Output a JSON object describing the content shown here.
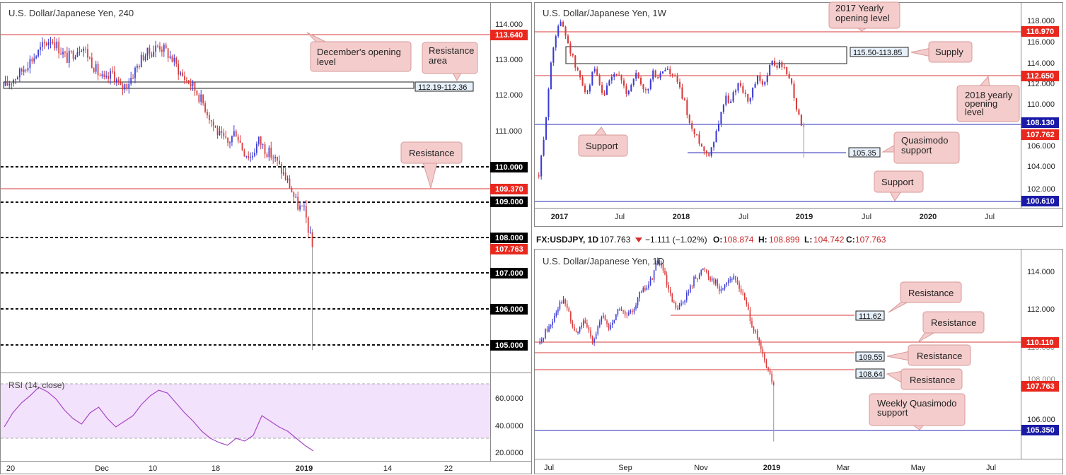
{
  "colors": {
    "bull": "#3b3bd6",
    "bear": "#d93a3a",
    "red_line": "#d93a3a",
    "blue_line": "#2a2ab8",
    "callout_fill": "#f4cccc",
    "callout_stroke": "#d99a9a",
    "rsi_fill": "#f3e2fb",
    "rsi_line": "#a646c8",
    "tag_red": "#e8281e",
    "tag_black": "#000000",
    "tag_blue": "#1a1aa8",
    "zone_label_fill": "#e6f0fa"
  },
  "charts": [
    {
      "id": "h4",
      "title": "U.S. Dollar/Japanese Yen, 240",
      "x_labels": [
        "20",
        "Dec",
        "10",
        "18",
        "2019",
        "14",
        "22"
      ],
      "y_labels": [
        "114.000",
        "113.000",
        "112.000",
        "111.000",
        "110.000",
        "109.000",
        "108.000",
        "107.000",
        "106.000",
        "105.000"
      ],
      "price_tags": [
        {
          "value": "113.640",
          "style": "red"
        },
        {
          "value": "110.000",
          "style": "black"
        },
        {
          "value": "109.370",
          "style": "red"
        },
        {
          "value": "109.000",
          "style": "black"
        },
        {
          "value": "108.000",
          "style": "black"
        },
        {
          "value": "107.763",
          "style": "red"
        },
        {
          "value": "107.000",
          "style": "black"
        },
        {
          "value": "106.000",
          "style": "black"
        },
        {
          "value": "105.000",
          "style": "black"
        }
      ],
      "zone_label": "112.19-112.36",
      "callouts": [
        "December's opening level",
        "Resistance area",
        "Resistance"
      ],
      "rsi": {
        "title": "RSI (14, close)",
        "y_labels": [
          "60.0000",
          "40.0000",
          "20.0000"
        ]
      }
    },
    {
      "id": "w1",
      "title": "U.S. Dollar/Japanese Yen, 1W",
      "x_labels": [
        "2017",
        "Jul",
        "2018",
        "Jul",
        "2019",
        "Jul",
        "2020",
        "Jul"
      ],
      "y_labels": [
        "118.000",
        "116.000",
        "114.000",
        "112.000",
        "110.000",
        "108.000",
        "106.000",
        "104.000",
        "102.000"
      ],
      "price_tags": [
        {
          "value": "116.970",
          "style": "red"
        },
        {
          "value": "112.650",
          "style": "red"
        },
        {
          "value": "108.130",
          "style": "blue"
        },
        {
          "value": "107.762",
          "style": "red"
        },
        {
          "value": "100.610",
          "style": "blue"
        }
      ],
      "zone_labels": [
        "115.50-113.85",
        "105.35"
      ],
      "callouts": [
        "2017 Yearly opening level",
        "Supply",
        "2018 yearly opening level",
        "Support",
        "Quasimodo support",
        "Support"
      ]
    },
    {
      "id": "d1",
      "title": "U.S. Dollar/Japanese Yen, 1D",
      "header": {
        "symbol": "FX:USDJPY, 1D",
        "price": "107.763",
        "change": "−1.111 (−1.02%)",
        "o_label": "O:",
        "o": "108.874",
        "h_label": "H:",
        "h": "108.899",
        "l_label": "L:",
        "l": "104.742",
        "c_label": "C:",
        "c": "107.763"
      },
      "x_labels": [
        "Jul",
        "Sep",
        "Nov",
        "2019",
        "Mar",
        "May",
        "Jul"
      ],
      "y_labels": [
        "114.000",
        "112.000",
        "110.000",
        "108.000",
        "106.000"
      ],
      "price_tags": [
        {
          "value": "110.110",
          "style": "red"
        },
        {
          "value": "107.763",
          "style": "red"
        },
        {
          "value": "105.350",
          "style": "blue"
        }
      ],
      "zone_labels": [
        "111.62",
        "109.55",
        "108.64"
      ],
      "callouts": [
        "Resistance",
        "Resistance",
        "Resistance",
        "Resistance",
        "Weekly Quasimodo support"
      ]
    }
  ],
  "chart_data": [
    {
      "type": "candlestick",
      "title": "U.S. Dollar/Japanese Yen, 240",
      "ylim": [
        104.6,
        114.4
      ],
      "x_ticks": [
        "20",
        "Dec",
        "10",
        "18",
        "2019",
        "14",
        "22"
      ],
      "levels": [
        {
          "value": 113.64,
          "kind": "resistance"
        },
        {
          "value": 110.0,
          "kind": "round"
        },
        {
          "value": 109.37,
          "kind": "resistance"
        },
        {
          "value": 109.0,
          "kind": "round"
        },
        {
          "value": 108.0,
          "kind": "round"
        },
        {
          "value": 107.0,
          "kind": "round"
        },
        {
          "value": 106.0,
          "kind": "round"
        },
        {
          "value": 105.0,
          "kind": "round"
        }
      ],
      "zone": [
        112.19,
        112.36
      ],
      "last": 107.763,
      "low": 104.74,
      "path": [
        112.5,
        112.7,
        112.9,
        113.2,
        113.4,
        113.7,
        113.9,
        113.6,
        113.3,
        113.5,
        113.7,
        113.3,
        112.9,
        112.6,
        112.9,
        112.4,
        112.6,
        113.0,
        113.4,
        113.5,
        113.7,
        113.5,
        113.2,
        112.8,
        112.6,
        112.3,
        111.9,
        111.4,
        111.0,
        110.8,
        111.2,
        110.6,
        110.4,
        110.9,
        110.6,
        110.4,
        110.0,
        109.6,
        109.0,
        108.8,
        107.76
      ],
      "rsi": {
        "ylim": [
          15,
          75
        ],
        "overbought": 70,
        "oversold": 30,
        "values": [
          38,
          48,
          55,
          60,
          66,
          63,
          58,
          50,
          44,
          40,
          48,
          52,
          44,
          38,
          42,
          46,
          54,
          60,
          64,
          62,
          55,
          48,
          42,
          35,
          30,
          27,
          25,
          30,
          28,
          32,
          46,
          42,
          38,
          35,
          30,
          25,
          21
        ]
      }
    },
    {
      "type": "candlestick",
      "title": "U.S. Dollar/Japanese Yen, 1W",
      "ylim": [
        100.0,
        119.2
      ],
      "x_ticks": [
        "2017",
        "Jul",
        "2018",
        "Jul",
        "2019",
        "Jul",
        "2020",
        "Jul"
      ],
      "levels": [
        {
          "value": 116.97,
          "kind": "resistance"
        },
        {
          "value": 112.65,
          "kind": "resistance"
        },
        {
          "value": 108.13,
          "kind": "support"
        },
        {
          "value": 105.35,
          "kind": "support"
        },
        {
          "value": 100.61,
          "kind": "support"
        }
      ],
      "zone": [
        113.85,
        115.5
      ],
      "last": 107.762,
      "low": 104.74,
      "path": [
        103.0,
        106.0,
        111.0,
        115.0,
        117.5,
        117.8,
        116.5,
        115.0,
        113.5,
        112.5,
        111.5,
        111.0,
        113.5,
        112.0,
        110.5,
        111.5,
        112.5,
        113.0,
        112.0,
        111.0,
        111.5,
        113.0,
        112.0,
        111.0,
        111.5,
        113.0,
        112.5,
        113.0,
        113.5,
        112.5,
        112.5,
        111.0,
        110.0,
        108.0,
        107.0,
        106.5,
        105.5,
        105.0,
        106.0,
        107.5,
        109.5,
        110.5,
        110.0,
        111.5,
        112.0,
        111.0,
        110.0,
        111.5,
        112.5,
        111.5,
        113.0,
        114.0,
        113.5,
        114.0,
        113.0,
        112.5,
        110.5,
        108.5,
        107.76
      ]
    },
    {
      "type": "candlestick",
      "title": "U.S. Dollar/Japanese Yen, 1D",
      "ylim": [
        104.0,
        114.8
      ],
      "x_ticks": [
        "Jul",
        "Sep",
        "Nov",
        "2019",
        "Mar",
        "May",
        "Jul"
      ],
      "levels": [
        {
          "value": 111.62,
          "kind": "resistance"
        },
        {
          "value": 110.11,
          "kind": "resistance"
        },
        {
          "value": 109.55,
          "kind": "resistance"
        },
        {
          "value": 108.64,
          "kind": "resistance"
        },
        {
          "value": 105.35,
          "kind": "support"
        }
      ],
      "last": 107.763,
      "low": 104.742,
      "path": [
        110.0,
        110.7,
        111.0,
        111.8,
        112.4,
        112.1,
        111.0,
        110.5,
        111.2,
        110.8,
        110.2,
        111.0,
        111.5,
        110.8,
        111.4,
        112.0,
        111.5,
        111.6,
        112.2,
        112.8,
        113.0,
        113.5,
        114.5,
        114.2,
        113.0,
        112.2,
        111.8,
        112.4,
        112.8,
        113.5,
        113.8,
        114.1,
        113.6,
        113.4,
        112.8,
        113.4,
        113.6,
        113.4,
        112.8,
        112.0,
        111.0,
        110.2,
        109.3,
        108.5,
        107.763
      ]
    }
  ]
}
